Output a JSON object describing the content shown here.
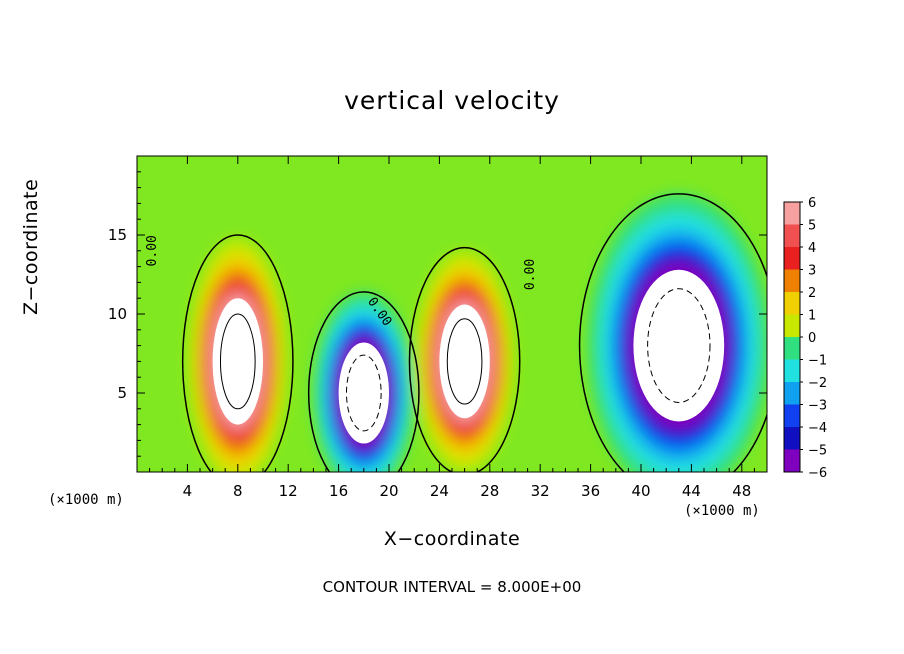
{
  "chart_data": {
    "type": "heatmap",
    "title": "vertical velocity",
    "xlabel": "X−coordinate",
    "ylabel": "Z−coordinate",
    "x_unit_label": "(×1000 m)",
    "y_unit_label": "(×1000 m)",
    "footer": "CONTOUR INTERVAL = 8.000E+00",
    "xlim": [
      0,
      50
    ],
    "ylim": [
      0,
      20
    ],
    "x_ticks": [
      4,
      8,
      12,
      16,
      20,
      24,
      28,
      32,
      36,
      40,
      44,
      48
    ],
    "y_ticks": [
      5,
      10,
      15
    ],
    "colorbar_ticks": [
      "6",
      "5",
      "4",
      "3",
      "2",
      "1",
      "0",
      "−1",
      "−2",
      "−3",
      "−4",
      "−5",
      "−6"
    ],
    "colorbar_range": [
      -6,
      6
    ],
    "contour_labels": [
      "0.00",
      "0.00",
      "0.00"
    ],
    "features": [
      {
        "kind": "updraft",
        "x_center": 8,
        "z_center": 7,
        "x_width": 5,
        "z_height": 10,
        "peak": 8
      },
      {
        "kind": "downdraft",
        "x_center": 18,
        "z_center": 5,
        "x_width": 5,
        "z_height": 8,
        "peak": -8
      },
      {
        "kind": "updraft",
        "x_center": 26,
        "z_center": 7,
        "x_width": 5,
        "z_height": 9,
        "peak": 8
      },
      {
        "kind": "downdraft",
        "x_center": 43,
        "z_center": 8,
        "x_width": 9,
        "z_height": 12,
        "peak": -8
      }
    ],
    "colors": {
      "6": "#f6a0a0",
      "5": "#f05050",
      "4": "#e82020",
      "3": "#f08000",
      "2": "#f0d000",
      "1": "#c8e800",
      "0": "#40d840",
      "-1": "#30e080",
      "-2": "#20e0e0",
      "-3": "#10a0f0",
      "-4": "#1040f0",
      "-5": "#1010c0",
      "-6": "#8000c0",
      "background": "#80e820"
    }
  }
}
